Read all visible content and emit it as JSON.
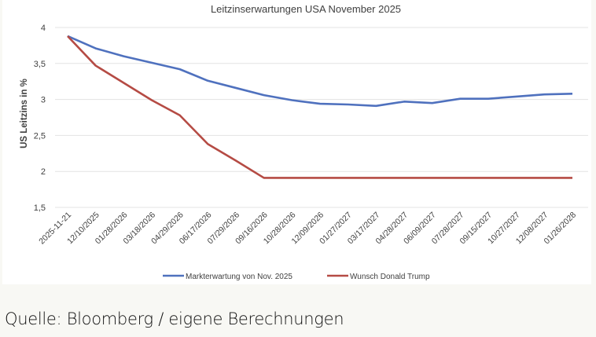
{
  "chart_data": {
    "type": "line",
    "title": "Leitzinserwartungen USA November 2025",
    "xlabel": "",
    "ylabel": "US Leitzins in %",
    "ylim": [
      1.5,
      4
    ],
    "yticks": [
      "4",
      "3,5",
      "3",
      "2,5",
      "2",
      "1,5"
    ],
    "ytick_values": [
      4,
      3.5,
      3,
      2.5,
      2,
      1.5
    ],
    "grid": true,
    "legend_position": "bottom",
    "categories": [
      "2025-11-21",
      "12/10/2025",
      "01/28/2026",
      "03/18/2026",
      "04/29/2026",
      "06/17/2026",
      "07/29/2026",
      "09/16/2026",
      "10/28/2026",
      "12/09/2026",
      "01/27/2027",
      "03/17/2027",
      "04/28/2027",
      "06/09/2027",
      "07/28/2027",
      "09/15/2027",
      "10/27/2027",
      "12/08/2027",
      "01/26/2028"
    ],
    "series": [
      {
        "name": "Markterwartung von Nov. 2025",
        "color": "#4f71be",
        "values": [
          3.88,
          3.71,
          3.6,
          3.51,
          3.42,
          3.26,
          3.16,
          3.06,
          2.99,
          2.94,
          2.93,
          2.91,
          2.97,
          2.95,
          3.01,
          3.01,
          3.04,
          3.07,
          3.08
        ]
      },
      {
        "name": "Wunsch Donald Trump",
        "color": "#b54b44",
        "values": [
          3.88,
          3.47,
          3.23,
          2.99,
          2.78,
          2.38,
          2.15,
          1.91,
          1.91,
          1.91,
          1.91,
          1.91,
          1.91,
          1.91,
          1.91,
          1.91,
          1.91,
          1.91,
          1.91
        ]
      }
    ]
  },
  "caption": "Quelle: Bloomberg / eigene Berechnungen"
}
